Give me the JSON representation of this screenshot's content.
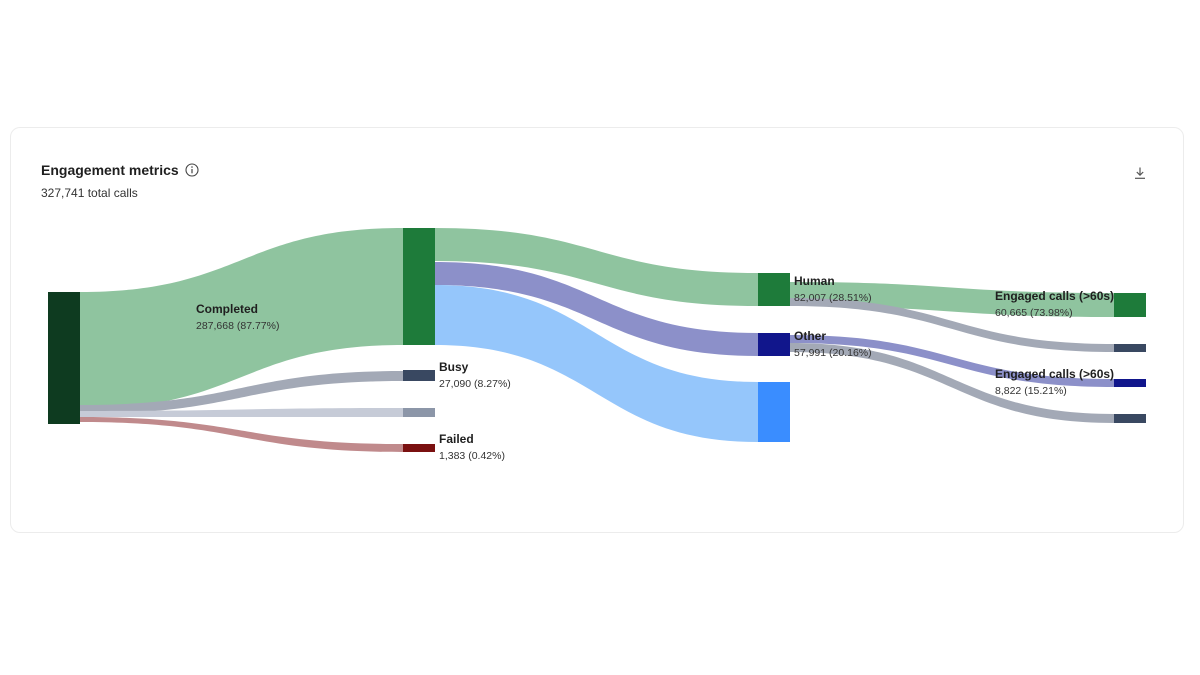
{
  "header": {
    "title": "Engagement metrics",
    "subtitle": "327,741 total calls",
    "info_icon": "info-circle-icon",
    "download_icon": "download-icon"
  },
  "chart_data": {
    "type": "sankey",
    "title": "Engagement metrics",
    "subtitle": "327,741 total calls",
    "total": 327741,
    "nodes": [
      {
        "id": "all",
        "name": "",
        "value": 327741,
        "color": "#0e3b20"
      },
      {
        "id": "completed",
        "name": "Completed",
        "value_label": "287,668 (87.77%)",
        "value": 287668,
        "color": "#1e7b3a"
      },
      {
        "id": "busy",
        "name": "Busy",
        "value_label": "27,090 (8.27%)",
        "value": 27090,
        "color": "#394861"
      },
      {
        "id": "noanswer",
        "name": "",
        "value": 11600,
        "color": "#8c96a8"
      },
      {
        "id": "failed",
        "name": "Failed",
        "value_label": "1,383 (0.42%)",
        "value": 1383,
        "color": "#7a1010"
      },
      {
        "id": "human",
        "name": "Human",
        "value_label": "82,007 (28.51%)",
        "value": 82007,
        "color": "#1e7b3a"
      },
      {
        "id": "other",
        "name": "Other",
        "value_label": "57,991 (20.16%)",
        "value": 57991,
        "color": "#11168c"
      },
      {
        "id": "machine",
        "name": "",
        "value": 147670,
        "color": "#3a8dff"
      },
      {
        "id": "human_engaged",
        "name": "Engaged calls (>60s)",
        "value_label": "60,665 (73.98%)",
        "value": 60665,
        "color": "#1e7b3a"
      },
      {
        "id": "human_short",
        "name": "",
        "value": 21342,
        "color": "#394861"
      },
      {
        "id": "other_engaged",
        "name": "Engaged calls (>60s)",
        "value_label": "8,822 (15.21%)",
        "value": 8822,
        "color": "#11168c"
      },
      {
        "id": "other_short",
        "name": "",
        "value": 49169,
        "color": "#394861"
      }
    ],
    "links": [
      {
        "source": "all",
        "target": "completed",
        "value": 287668,
        "color": "#8fc49f"
      },
      {
        "source": "all",
        "target": "busy",
        "value": 27090,
        "color": "#a3a9b6"
      },
      {
        "source": "all",
        "target": "noanswer",
        "value": 11600,
        "color": "#c6cbd7"
      },
      {
        "source": "all",
        "target": "failed",
        "value": 1383,
        "color": "#c08a8c"
      },
      {
        "source": "completed",
        "target": "human",
        "value": 82007,
        "color": "#8fc49f"
      },
      {
        "source": "completed",
        "target": "other",
        "value": 57991,
        "color": "#8c90c9"
      },
      {
        "source": "completed",
        "target": "machine",
        "value": 147670,
        "color": "#95c6fb"
      },
      {
        "source": "human",
        "target": "human_engaged",
        "value": 60665,
        "color": "#8fc49f"
      },
      {
        "source": "human",
        "target": "human_short",
        "value": 21342,
        "color": "#a3a9b6"
      },
      {
        "source": "other",
        "target": "other_engaged",
        "value": 8822,
        "color": "#8c90c9"
      },
      {
        "source": "other",
        "target": "other_short",
        "value": 49169,
        "color": "#a3a9b6"
      }
    ]
  }
}
